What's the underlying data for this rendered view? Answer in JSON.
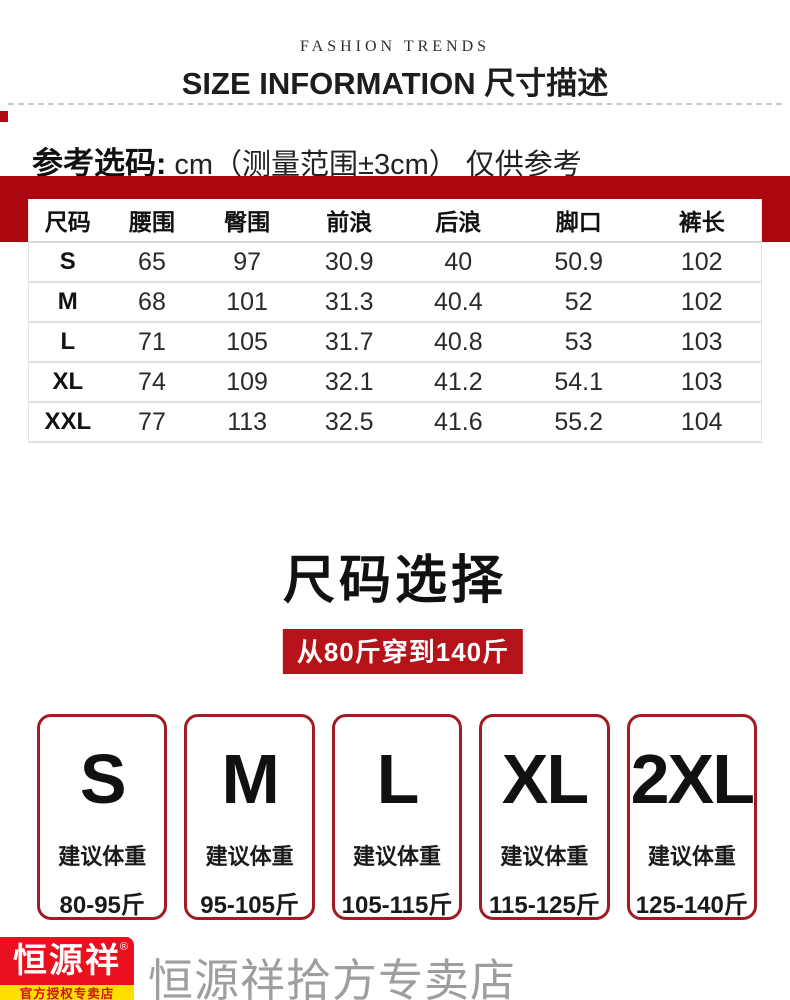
{
  "header": {
    "eyebrow": "FASHION TRENDS",
    "title": "SIZE INFORMATION 尺寸描述"
  },
  "intro": {
    "label_bold": "参考选码:",
    "label_rest": " cm（测量范围±3cm） 仅供参考"
  },
  "size_table": {
    "columns": [
      "尺码",
      "腰围",
      "臀围",
      "前浪",
      "后浪",
      "脚口",
      "裤长"
    ],
    "rows": [
      [
        "S",
        "65",
        "97",
        "30.9",
        "40",
        "50.9",
        "102"
      ],
      [
        "M",
        "68",
        "101",
        "31.3",
        "40.4",
        "52",
        "102"
      ],
      [
        "L",
        "71",
        "105",
        "31.7",
        "40.8",
        "53",
        "103"
      ],
      [
        "XL",
        "74",
        "109",
        "32.1",
        "41.2",
        "54.1",
        "103"
      ],
      [
        "XXL",
        "77",
        "113",
        "32.5",
        "41.6",
        "55.2",
        "104"
      ]
    ]
  },
  "size_select": {
    "title": "尺码选择",
    "badge": "从80斤穿到140斤",
    "options": [
      {
        "size": "S",
        "hint": "建议体重",
        "range": "80-95斤"
      },
      {
        "size": "M",
        "hint": "建议体重",
        "range": "95-105斤"
      },
      {
        "size": "L",
        "hint": "建议体重",
        "range": "105-115斤"
      },
      {
        "size": "XL",
        "hint": "建议体重",
        "range": "115-125斤"
      },
      {
        "size": "2XL",
        "hint": "建议体重",
        "range": "125-140斤"
      }
    ]
  },
  "footer": {
    "logo_text": "恒源祥",
    "logo_reg": "®",
    "logo_sub": "官方授权专卖店",
    "store_name": "恒源祥拾方专卖店"
  },
  "colors": {
    "band_red": "#ac060e",
    "badge_red": "#b5121a",
    "card_border_red": "#a11b22",
    "logo_red": "#e8111d",
    "logo_yellow": "#ffdf00"
  }
}
